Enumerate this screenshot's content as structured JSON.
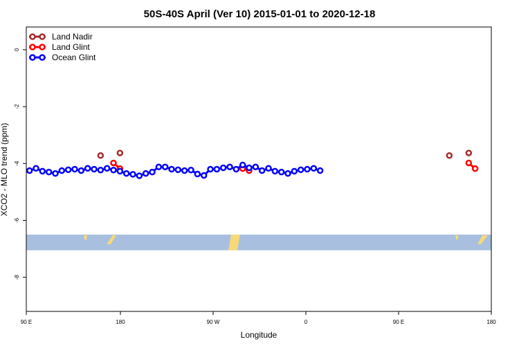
{
  "chart_data": {
    "type": "line",
    "title": "50S-40S April (Ver 10)   2015-01-01 to 2020-12-18",
    "xlabel": "Longitude",
    "ylabel": "XCO2 - MLO trend (ppm)",
    "xlim": [
      90,
      450
    ],
    "ylim": [
      -9.2,
      0.8
    ],
    "x_ticks": [
      {
        "value": 90,
        "label": "90 E"
      },
      {
        "value": 180,
        "label": "180"
      },
      {
        "value": 270,
        "label": "90 W"
      },
      {
        "value": 360,
        "label": "0"
      },
      {
        "value": 450,
        "label": "90 E"
      },
      {
        "value": 540,
        "label": "180"
      }
    ],
    "y_ticks": [
      {
        "value": 0,
        "label": "0"
      },
      {
        "value": -2,
        "label": "-2"
      },
      {
        "value": -4,
        "label": "-4"
      },
      {
        "value": -6,
        "label": "-6"
      },
      {
        "value": -8,
        "label": "-8"
      }
    ],
    "legend": {
      "placement": "top-left"
    },
    "series": [
      {
        "name": "Land Nadir",
        "color": "#a52a2a",
        "connected": false,
        "points": [
          [
            147.5,
            -3.72
          ],
          [
            162.5,
            -3.63
          ],
          [
            417.5,
            -3.72
          ],
          [
            432.5,
            -3.63
          ]
        ]
      },
      {
        "name": "Land Glint",
        "color": "#ff0000",
        "connected": true,
        "points": [
          [
            157.5,
            -3.98
          ],
          [
            162.5,
            -4.18
          ],
          [
            257.5,
            -4.18
          ],
          [
            262.5,
            -4.25
          ],
          [
            432.5,
            -3.98
          ],
          [
            437.5,
            -4.18
          ]
        ]
      },
      {
        "name": "Ocean Glint",
        "color": "#0000ff",
        "connected": true,
        "points": [
          [
            92.5,
            -4.25
          ],
          [
            97.5,
            -4.17
          ],
          [
            102.5,
            -4.27
          ],
          [
            107.5,
            -4.3
          ],
          [
            112.5,
            -4.35
          ],
          [
            117.5,
            -4.25
          ],
          [
            122.5,
            -4.22
          ],
          [
            127.5,
            -4.2
          ],
          [
            132.5,
            -4.25
          ],
          [
            137.5,
            -4.17
          ],
          [
            142.5,
            -4.2
          ],
          [
            147.5,
            -4.23
          ],
          [
            152.5,
            -4.17
          ],
          [
            157.5,
            -4.23
          ],
          [
            162.5,
            -4.27
          ],
          [
            167.5,
            -4.35
          ],
          [
            172.5,
            -4.38
          ],
          [
            177.5,
            -4.43
          ],
          [
            182.5,
            -4.35
          ],
          [
            187.5,
            -4.3
          ],
          [
            192.5,
            -4.12
          ],
          [
            197.5,
            -4.12
          ],
          [
            202.5,
            -4.2
          ],
          [
            207.5,
            -4.22
          ],
          [
            212.5,
            -4.25
          ],
          [
            217.5,
            -4.23
          ],
          [
            222.5,
            -4.37
          ],
          [
            227.5,
            -4.42
          ],
          [
            232.5,
            -4.2
          ],
          [
            237.5,
            -4.2
          ],
          [
            242.5,
            -4.15
          ],
          [
            247.5,
            -4.12
          ],
          [
            252.5,
            -4.2
          ],
          [
            257.5,
            -4.05
          ],
          [
            262.5,
            -4.15
          ],
          [
            267.5,
            -4.12
          ],
          [
            272.5,
            -4.25
          ],
          [
            277.5,
            -4.17
          ],
          [
            282.5,
            -4.27
          ],
          [
            287.5,
            -4.3
          ],
          [
            292.5,
            -4.35
          ],
          [
            297.5,
            -4.27
          ],
          [
            302.5,
            -4.22
          ],
          [
            307.5,
            -4.2
          ],
          [
            312.5,
            -4.17
          ],
          [
            317.5,
            -4.25
          ]
        ]
      }
    ],
    "landmask_band": {
      "ylim": [
        -6.5,
        -7.05
      ],
      "ocean_color": "#a8bfdf",
      "land_color": "#f7d97a"
    }
  }
}
